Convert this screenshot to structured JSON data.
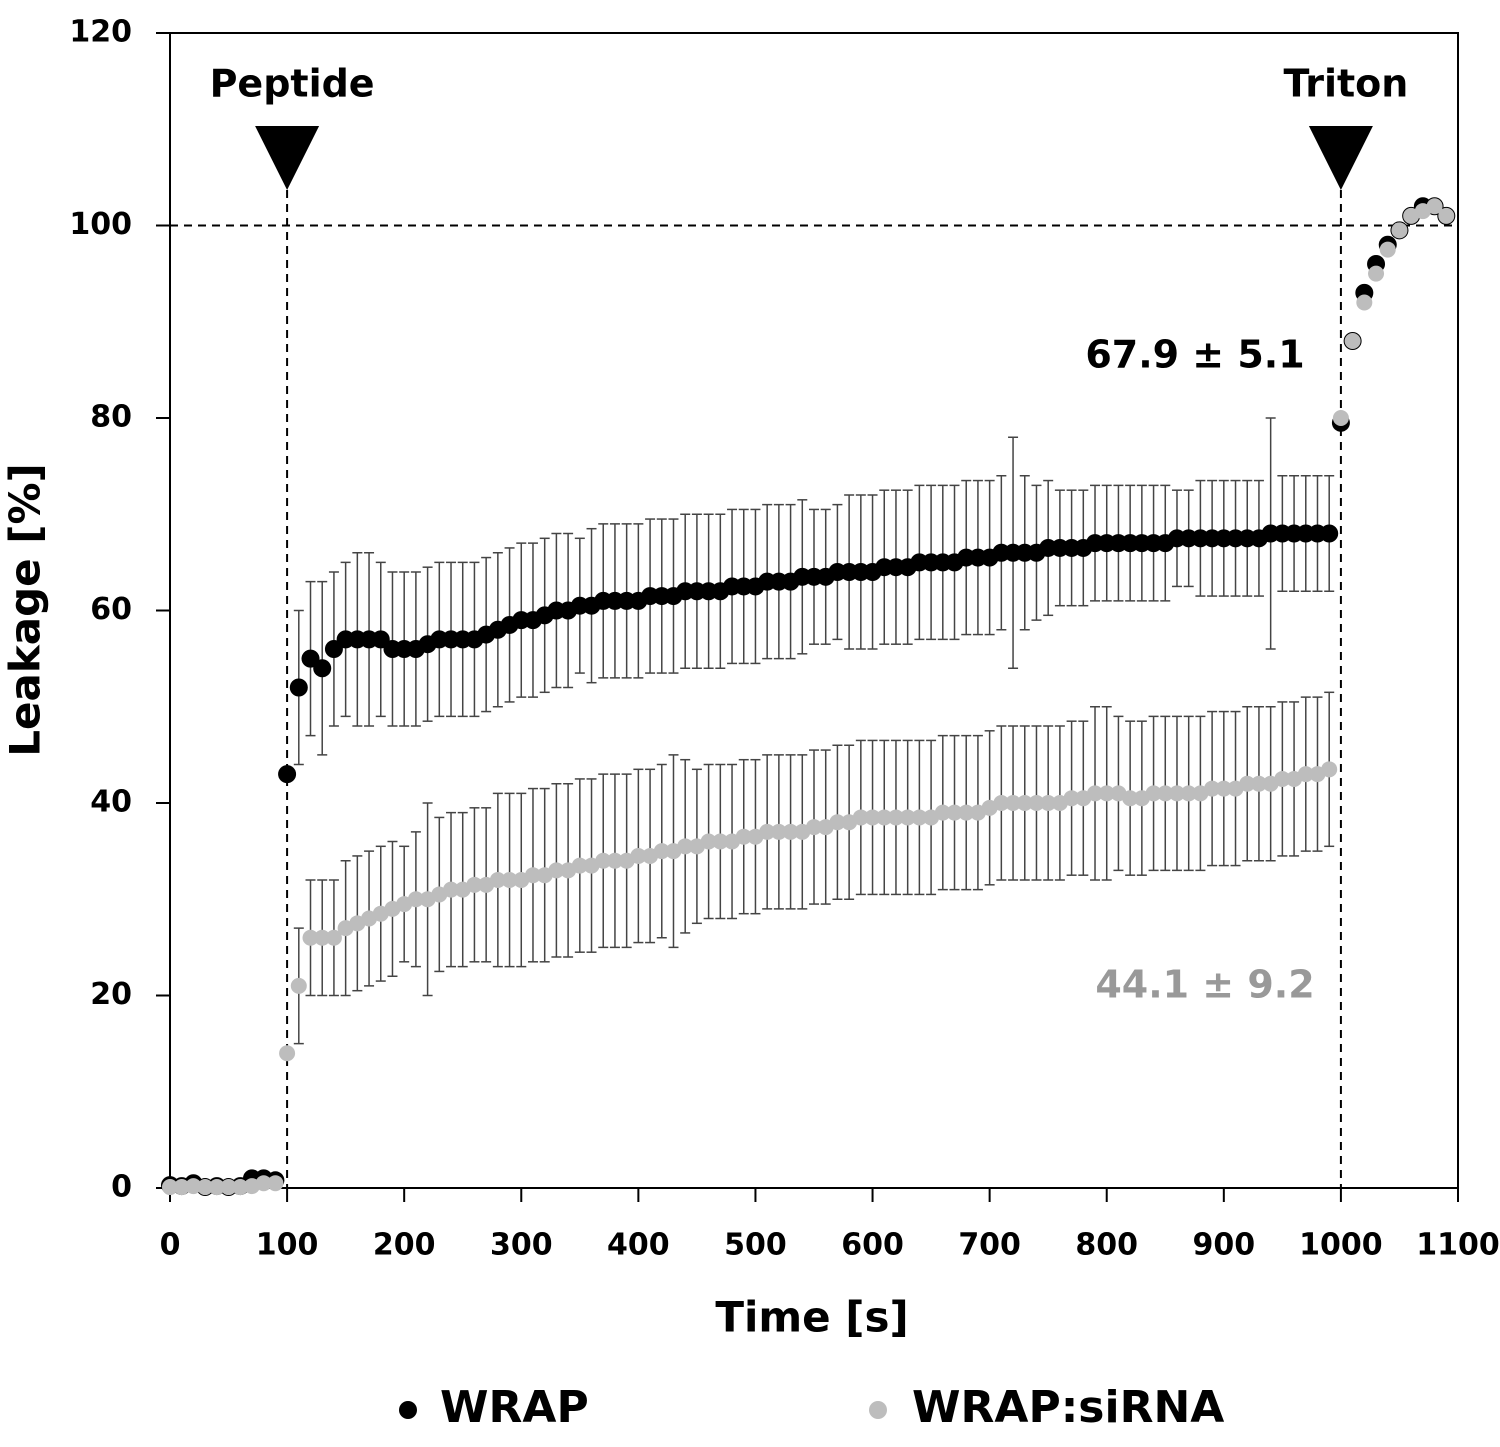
{
  "chart_data": {
    "type": "scatter",
    "xlabel": "Time [s]",
    "ylabel": "Leakage [%]",
    "xlim": [
      0,
      1100
    ],
    "xticks": [
      0,
      100,
      200,
      300,
      400,
      500,
      600,
      700,
      800,
      900,
      1000,
      1100
    ],
    "ylim": [
      0,
      120
    ],
    "yticks": [
      0,
      20,
      40,
      60,
      80,
      100,
      120
    ],
    "legend": "bottom",
    "x": [
      0,
      10,
      20,
      30,
      40,
      50,
      60,
      70,
      80,
      90,
      100,
      110,
      120,
      130,
      140,
      150,
      160,
      170,
      180,
      190,
      200,
      210,
      220,
      230,
      240,
      250,
      260,
      270,
      280,
      290,
      300,
      310,
      320,
      330,
      340,
      350,
      360,
      370,
      380,
      390,
      400,
      410,
      420,
      430,
      440,
      450,
      460,
      470,
      480,
      490,
      500,
      510,
      520,
      530,
      540,
      550,
      560,
      570,
      580,
      590,
      600,
      610,
      620,
      630,
      640,
      650,
      660,
      670,
      680,
      690,
      700,
      710,
      720,
      730,
      740,
      750,
      760,
      770,
      780,
      790,
      800,
      810,
      820,
      830,
      840,
      850,
      860,
      870,
      880,
      890,
      900,
      910,
      920,
      930,
      940,
      950,
      960,
      970,
      980,
      990,
      1000,
      1010,
      1020,
      1030,
      1040,
      1050,
      1060,
      1070,
      1080,
      1090
    ],
    "series": [
      {
        "name": "WRAP",
        "color": "#000000",
        "values": [
          0.3,
          0.2,
          0.5,
          0.1,
          0.2,
          0.1,
          0.2,
          1,
          1,
          0.8,
          43,
          52,
          55,
          54,
          56,
          57,
          57,
          57,
          57,
          56,
          56,
          56,
          56.5,
          57,
          57,
          57,
          57,
          57.5,
          58,
          58.5,
          59,
          59,
          59.5,
          60,
          60,
          60.5,
          60.5,
          61,
          61,
          61,
          61,
          61.5,
          61.5,
          61.5,
          62,
          62,
          62,
          62,
          62.5,
          62.5,
          62.5,
          63,
          63,
          63,
          63.5,
          63.5,
          63.5,
          64,
          64,
          64,
          64,
          64.5,
          64.5,
          64.5,
          65,
          65,
          65,
          65,
          65.5,
          65.5,
          65.5,
          66,
          66,
          66,
          66,
          66.5,
          66.5,
          66.5,
          66.5,
          67,
          67,
          67,
          67,
          67,
          67,
          67,
          67.5,
          67.5,
          67.5,
          67.5,
          67.5,
          67.5,
          67.5,
          67.5,
          68,
          68,
          68,
          68,
          68,
          68,
          79.5,
          88,
          93,
          96,
          98,
          99.5,
          101,
          102,
          102,
          101
        ],
        "errors": [
          null,
          null,
          null,
          null,
          null,
          null,
          null,
          null,
          null,
          null,
          null,
          8,
          8,
          9,
          8,
          8,
          9,
          9,
          8,
          8,
          8,
          8,
          8,
          8,
          8,
          8,
          8,
          8,
          8,
          8,
          8,
          8,
          8,
          8,
          8,
          7,
          8,
          8,
          8,
          8,
          8,
          8,
          8,
          8,
          8,
          8,
          8,
          8,
          8,
          8,
          8,
          8,
          8,
          8,
          8,
          7,
          7,
          7,
          8,
          8,
          8,
          8,
          8,
          8,
          8,
          8,
          8,
          8,
          8,
          8,
          8,
          8,
          12,
          8,
          7,
          7,
          6,
          6,
          6,
          6,
          6,
          6,
          6,
          6,
          6,
          6,
          5,
          5,
          6,
          6,
          6,
          6,
          6,
          6,
          12,
          6,
          6,
          6,
          6,
          6,
          null,
          null,
          null,
          null,
          null,
          null,
          null,
          null,
          null,
          null
        ]
      },
      {
        "name": "WRAP:siRNA",
        "color": "#bdbdbd",
        "values": [
          0.1,
          0.1,
          0.2,
          0.1,
          0.1,
          0.1,
          0.1,
          0.2,
          0.5,
          0.5,
          14,
          21,
          26,
          26,
          26,
          27,
          27.5,
          28,
          28.5,
          29,
          29.5,
          30,
          30,
          30.5,
          31,
          31,
          31.5,
          31.5,
          32,
          32,
          32,
          32.5,
          32.5,
          33,
          33,
          33.5,
          33.5,
          34,
          34,
          34,
          34.5,
          34.5,
          35,
          35,
          35.5,
          35.5,
          36,
          36,
          36,
          36.5,
          36.5,
          37,
          37,
          37,
          37,
          37.5,
          37.5,
          38,
          38,
          38.5,
          38.5,
          38.5,
          38.5,
          38.5,
          38.5,
          38.5,
          39,
          39,
          39,
          39,
          39.5,
          40,
          40,
          40,
          40,
          40,
          40,
          40.5,
          40.5,
          41,
          41,
          41,
          40.5,
          40.5,
          41,
          41,
          41,
          41,
          41,
          41.5,
          41.5,
          41.5,
          42,
          42,
          42,
          42.5,
          42.5,
          43,
          43,
          43.5,
          80,
          88,
          92,
          95,
          97.5,
          99.5,
          101,
          101.5,
          102,
          101
        ],
        "errors": [
          null,
          null,
          null,
          null,
          null,
          null,
          null,
          null,
          null,
          null,
          null,
          6,
          6,
          6,
          6,
          7,
          7,
          7,
          7,
          7,
          6,
          7,
          10,
          8,
          8,
          8,
          8,
          8,
          9,
          9,
          9,
          9,
          9,
          9,
          9,
          9,
          9,
          9,
          9,
          9,
          9,
          9,
          9,
          10,
          9,
          8,
          8,
          8,
          8,
          8,
          8,
          8,
          8,
          8,
          8,
          8,
          8,
          8,
          8,
          8,
          8,
          8,
          8,
          8,
          8,
          8,
          8,
          8,
          8,
          8,
          8,
          8,
          8,
          8,
          8,
          8,
          8,
          8,
          8,
          9,
          9,
          8,
          8,
          8,
          8,
          8,
          8,
          8,
          8,
          8,
          8,
          8,
          8,
          8,
          8,
          8,
          8,
          8,
          8,
          8,
          null,
          null,
          null,
          null,
          null,
          null,
          null,
          null,
          null,
          null
        ]
      }
    ],
    "markers": [
      {
        "text": "Peptide",
        "x": 100
      },
      {
        "text": "Triton",
        "x": 1000
      }
    ],
    "hline": 100,
    "annotations": [
      {
        "text": "67.9 ± 5.1",
        "color": "#000000"
      },
      {
        "text": "44.1 ± 9.2",
        "color": "#999999"
      }
    ]
  }
}
